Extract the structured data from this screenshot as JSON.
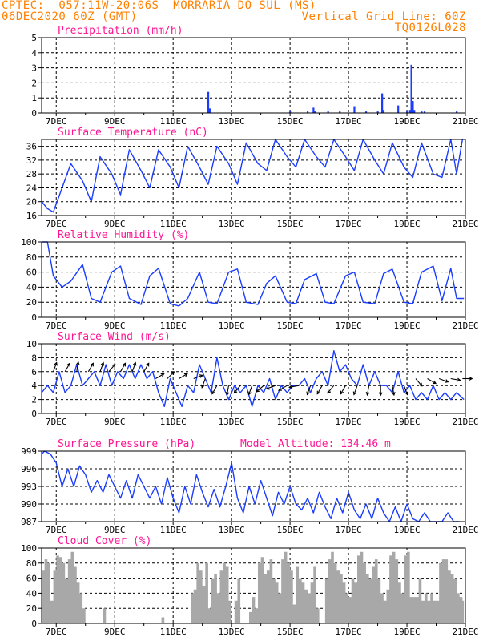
{
  "header": {
    "line1_left": "CPTEC:  057:11W-20:06S  MORRARIA DO SUL (MS)",
    "line2_left": "06DEC2020 60Z (GMT)",
    "line2_right": "Vertical Grid Line: 60Z",
    "line3_right": "TQ0126L028"
  },
  "colors": {
    "header": "#ff8000",
    "panel_title": "#ff1493",
    "series": "#1a3cff",
    "cloud_fill": "#a8a8a8",
    "frame": "#000000"
  },
  "chart_data": [
    {
      "type": "bar",
      "title": "Precipitation (mm/h)",
      "ylim": [
        0,
        5
      ],
      "yticks": [
        0,
        1,
        2,
        3,
        4,
        5
      ],
      "xticks": [
        "7DEC",
        "9DEC",
        "11DEC",
        "13DEC",
        "15DEC",
        "17DEC",
        "19DEC",
        "21DEC"
      ],
      "xlim_days": [
        6.5,
        21.0
      ],
      "grid": "dashed",
      "x": [
        "12DEC",
        "12DEC",
        "15DEC",
        "15DEC",
        "16DEC",
        "16DEC",
        "16DEC",
        "17DEC",
        "17DEC",
        "18DEC",
        "18DEC",
        "18DEC",
        "18DEC",
        "19DEC",
        "19DEC",
        "19DEC",
        "19DEC",
        "19DEC",
        "19DEC",
        "19DEC",
        "20DEC",
        "20DEC"
      ],
      "x_days": [
        12.2,
        12.25,
        15.0,
        15.6,
        15.8,
        15.85,
        16.3,
        16.7,
        17.2,
        17.6,
        18.0,
        18.15,
        18.2,
        18.7,
        19.0,
        19.1,
        19.15,
        19.2,
        19.25,
        19.5,
        19.6,
        20.7
      ],
      "values": [
        1.4,
        0.3,
        0.1,
        0.1,
        0.35,
        0.1,
        0.1,
        0.1,
        0.45,
        0.1,
        0.1,
        1.3,
        0.2,
        0.5,
        0.1,
        0.2,
        3.2,
        0.8,
        0.2,
        0.1,
        0.1,
        0.1
      ]
    },
    {
      "type": "line",
      "title": "Surface Temperature (nC)",
      "ylim": [
        16,
        38
      ],
      "yticks": [
        16,
        20,
        24,
        28,
        32,
        36
      ],
      "xticks": [
        "7DEC",
        "9DEC",
        "11DEC",
        "13DEC",
        "15DEC",
        "17DEC",
        "19DEC",
        "21DEC"
      ],
      "xlim_days": [
        6.5,
        21.0
      ],
      "grid": "dashed",
      "x_days": [
        6.5,
        6.7,
        6.9,
        7.2,
        7.5,
        7.9,
        8.2,
        8.5,
        8.9,
        9.2,
        9.5,
        9.9,
        10.2,
        10.5,
        10.9,
        11.2,
        11.5,
        11.9,
        12.2,
        12.5,
        12.9,
        13.2,
        13.5,
        13.9,
        14.2,
        14.5,
        14.9,
        15.2,
        15.5,
        15.9,
        16.2,
        16.5,
        16.9,
        17.2,
        17.5,
        17.9,
        18.2,
        18.5,
        18.9,
        19.2,
        19.5,
        19.9,
        20.2,
        20.5,
        20.7,
        20.9
      ],
      "values": [
        20,
        18,
        17,
        24,
        31,
        26,
        20,
        33,
        28,
        22,
        35,
        29,
        24,
        35,
        30,
        24,
        36,
        30,
        25,
        36,
        31,
        25,
        37,
        31,
        29,
        38,
        33,
        30,
        38,
        33,
        30,
        38,
        33,
        29,
        38,
        32,
        28,
        37,
        30,
        27,
        37,
        28,
        27,
        38,
        28,
        38
      ]
    },
    {
      "type": "line",
      "title": "Relative Humidity (%)",
      "ylim": [
        0,
        100
      ],
      "yticks": [
        0,
        20,
        40,
        60,
        80,
        100
      ],
      "xticks": [
        "7DEC",
        "9DEC",
        "11DEC",
        "13DEC",
        "15DEC",
        "17DEC",
        "19DEC",
        "21DEC"
      ],
      "xlim_days": [
        6.5,
        21.0
      ],
      "grid": "dashed",
      "x_days": [
        6.5,
        6.7,
        6.9,
        7.2,
        7.5,
        7.9,
        8.2,
        8.5,
        8.9,
        9.2,
        9.5,
        9.9,
        10.2,
        10.5,
        10.9,
        11.2,
        11.5,
        11.9,
        12.2,
        12.5,
        12.9,
        13.2,
        13.5,
        13.9,
        14.2,
        14.5,
        14.9,
        15.2,
        15.5,
        15.9,
        16.2,
        16.5,
        16.9,
        17.2,
        17.5,
        17.9,
        18.2,
        18.5,
        18.9,
        19.2,
        19.5,
        19.9,
        20.2,
        20.5,
        20.7,
        20.95
      ],
      "values": [
        100,
        100,
        55,
        40,
        48,
        70,
        25,
        20,
        60,
        68,
        25,
        17,
        55,
        65,
        18,
        15,
        25,
        60,
        20,
        18,
        60,
        64,
        20,
        17,
        45,
        55,
        20,
        18,
        50,
        58,
        20,
        18,
        55,
        60,
        20,
        18,
        58,
        64,
        20,
        18,
        60,
        68,
        22,
        65,
        25,
        25
      ]
    },
    {
      "type": "line",
      "title": "Surface Wind (m/s)",
      "ylim": [
        0,
        10
      ],
      "yticks": [
        0,
        2,
        4,
        6,
        8,
        10
      ],
      "xticks": [
        "7DEC",
        "9DEC",
        "11DEC",
        "13DEC",
        "15DEC",
        "17DEC",
        "19DEC",
        "21DEC"
      ],
      "xlim_days": [
        6.5,
        21.0
      ],
      "grid": "dashed",
      "x_days": [
        6.5,
        6.7,
        6.9,
        7.1,
        7.3,
        7.5,
        7.7,
        7.9,
        8.1,
        8.3,
        8.5,
        8.7,
        8.9,
        9.1,
        9.3,
        9.5,
        9.7,
        9.9,
        10.1,
        10.3,
        10.5,
        10.7,
        10.9,
        11.1,
        11.3,
        11.5,
        11.7,
        11.9,
        12.1,
        12.3,
        12.5,
        12.7,
        12.9,
        13.1,
        13.3,
        13.5,
        13.7,
        13.9,
        14.1,
        14.3,
        14.5,
        14.7,
        14.9,
        15.1,
        15.3,
        15.5,
        15.7,
        15.9,
        16.1,
        16.3,
        16.5,
        16.7,
        16.9,
        17.1,
        17.3,
        17.5,
        17.7,
        17.9,
        18.1,
        18.3,
        18.5,
        18.7,
        18.9,
        19.1,
        19.3,
        19.5,
        19.7,
        19.9,
        20.1,
        20.3,
        20.5,
        20.7,
        20.95
      ],
      "values": [
        3,
        4,
        3,
        6,
        3,
        4,
        7,
        4,
        5,
        6,
        4,
        7,
        4,
        6,
        5,
        7,
        5,
        7,
        5,
        6,
        3,
        1,
        5,
        3,
        1,
        4,
        3,
        7,
        5,
        3,
        8,
        4,
        2,
        4,
        3,
        4,
        1,
        4,
        3,
        5,
        2,
        4,
        3,
        4,
        4,
        5,
        3,
        5,
        6,
        4,
        9,
        6,
        7,
        5,
        4,
        7,
        4,
        6,
        4,
        4,
        3,
        6,
        3,
        4,
        2,
        3,
        2,
        4,
        2,
        3,
        2,
        3,
        2
      ],
      "arrows_x_days": [
        6.9,
        7.3,
        7.7,
        8.1,
        8.5,
        8.8,
        9.2,
        9.6,
        10.0,
        10.4,
        10.8,
        11.2,
        11.7,
        12.1,
        12.5,
        12.9,
        13.3,
        13.7,
        14.1,
        14.5,
        14.9,
        15.3,
        15.7,
        16.1,
        16.5,
        16.9,
        17.3,
        17.7,
        18.1,
        18.5,
        18.9,
        19.3,
        19.7,
        20.1,
        20.5,
        20.9
      ],
      "arrows_speed": [
        6,
        6,
        6,
        6,
        6,
        6,
        6,
        6,
        6,
        5,
        5,
        5,
        5,
        5,
        4,
        4,
        4,
        4,
        4,
        4,
        4,
        4,
        4,
        4,
        4,
        4,
        4,
        4,
        4,
        4,
        4,
        5,
        5,
        5,
        5,
        5
      ],
      "arrows_dir_deg": [
        20,
        30,
        10,
        30,
        20,
        40,
        30,
        20,
        30,
        60,
        45,
        60,
        70,
        200,
        210,
        190,
        220,
        200,
        230,
        250,
        240,
        260,
        200,
        210,
        220,
        210,
        200,
        190,
        180,
        170,
        160,
        140,
        120,
        110,
        100,
        90
      ]
    },
    {
      "type": "line",
      "title": "Surface Pressure (hPa)",
      "annotation": "Model Altitude: 134.46 m",
      "ylim": [
        987,
        999
      ],
      "yticks": [
        987,
        990,
        993,
        996,
        999
      ],
      "xticks": [
        "7DEC",
        "9DEC",
        "11DEC",
        "13DEC",
        "15DEC",
        "17DEC",
        "19DEC",
        "21DEC"
      ],
      "xlim_days": [
        6.5,
        21.0
      ],
      "grid": "dashed",
      "x_days": [
        6.5,
        6.6,
        6.8,
        7.0,
        7.2,
        7.4,
        7.6,
        7.8,
        8.0,
        8.2,
        8.4,
        8.6,
        8.8,
        9.0,
        9.2,
        9.4,
        9.6,
        9.8,
        10.0,
        10.2,
        10.4,
        10.6,
        10.8,
        11.0,
        11.2,
        11.4,
        11.6,
        11.8,
        12.0,
        12.2,
        12.4,
        12.6,
        12.8,
        13.0,
        13.2,
        13.4,
        13.6,
        13.8,
        14.0,
        14.2,
        14.4,
        14.6,
        14.8,
        15.0,
        15.2,
        15.4,
        15.6,
        15.8,
        16.0,
        16.2,
        16.4,
        16.6,
        16.8,
        17.0,
        17.2,
        17.4,
        17.6,
        17.8,
        18.0,
        18.2,
        18.4,
        18.6,
        18.8,
        19.0,
        19.2,
        19.4,
        19.6,
        19.8,
        20.0,
        20.2,
        20.4,
        20.6,
        20.8
      ],
      "values": [
        998.5,
        999,
        998.5,
        997,
        993,
        996,
        993,
        996.5,
        995,
        992,
        994,
        992,
        995,
        993,
        991,
        994,
        991,
        995,
        993,
        991,
        993,
        990,
        994.5,
        991,
        988.5,
        993,
        990,
        995,
        992,
        989.5,
        992.5,
        989.5,
        993,
        997,
        991,
        988.5,
        993,
        990,
        994,
        991,
        988,
        992,
        990,
        993,
        990,
        989,
        991,
        988.5,
        992,
        989.5,
        987.5,
        991,
        988.5,
        992,
        989,
        987.5,
        990,
        987.5,
        991,
        988.5,
        987,
        989.5,
        987,
        990,
        987.5,
        987,
        988.5,
        987,
        987,
        987,
        988.5,
        987,
        987
      ]
    },
    {
      "type": "area",
      "title": "Cloud Cover (%)",
      "ylim": [
        0,
        100
      ],
      "yticks": [
        0,
        20,
        40,
        60,
        80,
        100
      ],
      "xticks": [
        "7DEC",
        "9DEC",
        "11DEC",
        "13DEC",
        "15DEC",
        "17DEC",
        "19DEC",
        "21DEC"
      ],
      "xlim_days": [
        6.5,
        21.0
      ],
      "grid": "dashed",
      "x_days": [
        6.5,
        6.6,
        6.7,
        6.8,
        6.9,
        7.0,
        7.1,
        7.2,
        7.3,
        7.4,
        7.5,
        7.6,
        7.7,
        7.8,
        7.9,
        8.0,
        8.2,
        8.5,
        8.6,
        8.7,
        9.0,
        10.0,
        10.5,
        10.6,
        10.7,
        11.0,
        11.3,
        11.5,
        11.6,
        11.7,
        11.8,
        11.9,
        12.0,
        12.1,
        12.2,
        12.3,
        12.4,
        12.5,
        12.6,
        12.7,
        12.8,
        12.9,
        13.0,
        13.1,
        13.2,
        13.3,
        13.5,
        13.6,
        13.7,
        13.8,
        13.9,
        14.0,
        14.1,
        14.2,
        14.3,
        14.4,
        14.5,
        14.6,
        14.7,
        14.8,
        14.9,
        15.0,
        15.1,
        15.2,
        15.3,
        15.4,
        15.5,
        15.6,
        15.7,
        15.8,
        15.9,
        16.0,
        16.1,
        16.2,
        16.3,
        16.4,
        16.5,
        16.6,
        16.7,
        16.8,
        16.9,
        17.0,
        17.1,
        17.2,
        17.3,
        17.4,
        17.5,
        17.6,
        17.7,
        17.8,
        17.9,
        18.0,
        18.1,
        18.2,
        18.3,
        18.4,
        18.5,
        18.6,
        18.7,
        18.8,
        18.9,
        19.0,
        19.1,
        19.2,
        19.3,
        19.4,
        19.5,
        19.6,
        19.7,
        19.8,
        19.9,
        20.0,
        20.1,
        20.2,
        20.3,
        20.4,
        20.5,
        20.6,
        20.7,
        20.8,
        20.9,
        20.95
      ],
      "values": [
        70,
        85,
        80,
        30,
        70,
        90,
        88,
        80,
        60,
        85,
        95,
        75,
        55,
        40,
        20,
        0,
        0,
        0,
        20,
        0,
        0,
        0,
        0,
        8,
        0,
        0,
        0,
        0,
        40,
        45,
        80,
        70,
        50,
        80,
        20,
        60,
        65,
        40,
        70,
        80,
        75,
        30,
        0,
        30,
        60,
        0,
        0,
        15,
        35,
        20,
        80,
        88,
        65,
        70,
        85,
        60,
        55,
        40,
        85,
        95,
        80,
        70,
        25,
        75,
        60,
        55,
        45,
        40,
        55,
        75,
        20,
        0,
        0,
        60,
        85,
        95,
        80,
        70,
        65,
        55,
        40,
        35,
        60,
        55,
        90,
        95,
        80,
        65,
        60,
        75,
        85,
        60,
        40,
        30,
        45,
        90,
        95,
        85,
        55,
        40,
        90,
        95,
        35,
        35,
        35,
        60,
        30,
        40,
        30,
        40,
        30,
        30,
        80,
        85,
        85,
        70,
        65,
        60,
        40,
        35,
        30,
        25
      ]
    }
  ]
}
